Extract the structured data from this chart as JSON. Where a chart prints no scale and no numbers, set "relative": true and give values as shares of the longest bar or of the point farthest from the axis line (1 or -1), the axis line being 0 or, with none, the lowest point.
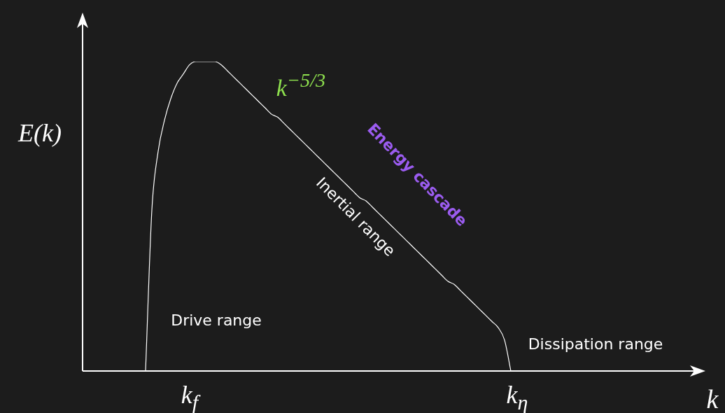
{
  "chart_data": {
    "type": "line",
    "xlabel": "k",
    "ylabel": "E(k)",
    "relative": true,
    "tick_labels": "x",
    "marker": "none",
    "categories": [
      null,
      null,
      null,
      null,
      null,
      null,
      null,
      null,
      null,
      null,
      null,
      null,
      null,
      null,
      null,
      null,
      null,
      "k$_{f}$",
      null,
      null,
      null,
      null,
      null,
      null,
      null,
      null,
      null,
      null,
      null,
      null,
      null,
      null,
      null,
      null,
      null,
      null,
      null,
      null,
      null,
      null,
      null,
      null,
      null,
      null,
      null,
      null,
      null,
      null,
      null,
      null,
      null,
      null,
      null,
      null,
      null,
      null,
      null,
      null,
      null,
      null,
      null,
      null,
      null,
      null,
      null,
      null,
      null,
      null,
      null,
      "k$_{η}$",
      null,
      null,
      null,
      null,
      null,
      null,
      null,
      null,
      null,
      null,
      null,
      null,
      null,
      null,
      null,
      null,
      null,
      null,
      null,
      null,
      null,
      null,
      null,
      null,
      null,
      null,
      null,
      null,
      null
    ],
    "series": [
      {
        "color": "#ffffff",
        "values": [
          null,
          null,
          null,
          null,
          null,
          null,
          null,
          null,
          null,
          null,
          0,
          0.52,
          0.71,
          0.81,
          0.88,
          0.93,
          0.96,
          0.99,
          1,
          1,
          1,
          1,
          0.99,
          0.97,
          0.95,
          0.93,
          0.91,
          0.89,
          0.87,
          0.85,
          0.83,
          0.82,
          0.8,
          0.78,
          0.76,
          0.74,
          0.72,
          0.7,
          0.68,
          0.66,
          0.64,
          0.62,
          0.6,
          0.58,
          0.56,
          0.55,
          0.53,
          0.51,
          0.49,
          0.47,
          0.45,
          0.43,
          0.41,
          0.39,
          0.37,
          0.35,
          0.33,
          0.31,
          0.29,
          0.28,
          0.26,
          0.24,
          0.22,
          0.2,
          0.18,
          0.16,
          0.14,
          0.1,
          0,
          null,
          null,
          null,
          null,
          null,
          null,
          null,
          null,
          null,
          null,
          null,
          null,
          null,
          null,
          null,
          null,
          null,
          null,
          null,
          null,
          null,
          null,
          null,
          null,
          null,
          null,
          null,
          null,
          null,
          null
        ]
      }
    ],
    "annotations": [
      "k$^{−5/3}$",
      "Energy cascade",
      "Inertial range",
      "Drive range",
      "Dissipation range"
    ]
  }
}
